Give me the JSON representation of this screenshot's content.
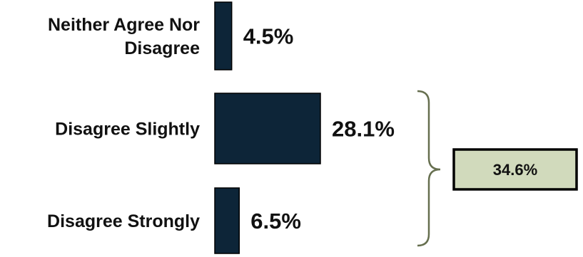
{
  "colors": {
    "bar": "#0d2538",
    "bar_edge": "#000000",
    "bracket": "#666f4f",
    "total_box_fill": "#d1dabc",
    "total_box_border": "#000000"
  },
  "chart_data": {
    "type": "bar",
    "orientation": "horizontal",
    "categories": [
      "Neither Agree Nor Disagree",
      "Disagree Slightly",
      "Disagree Strongly"
    ],
    "values": [
      4.5,
      28.1,
      6.5
    ],
    "value_labels": [
      "4.5%",
      "28.1%",
      "6.5%"
    ],
    "category_label_lines": [
      [
        "Neither Agree Nor",
        "Disagree"
      ],
      [
        "Disagree Slightly"
      ],
      [
        "Disagree Strongly"
      ]
    ],
    "bracket": {
      "spans_categories": [
        "Disagree Slightly",
        "Disagree Strongly"
      ],
      "total_value": 34.6,
      "total_label": "34.6%"
    },
    "grid": false,
    "legend": "none"
  }
}
